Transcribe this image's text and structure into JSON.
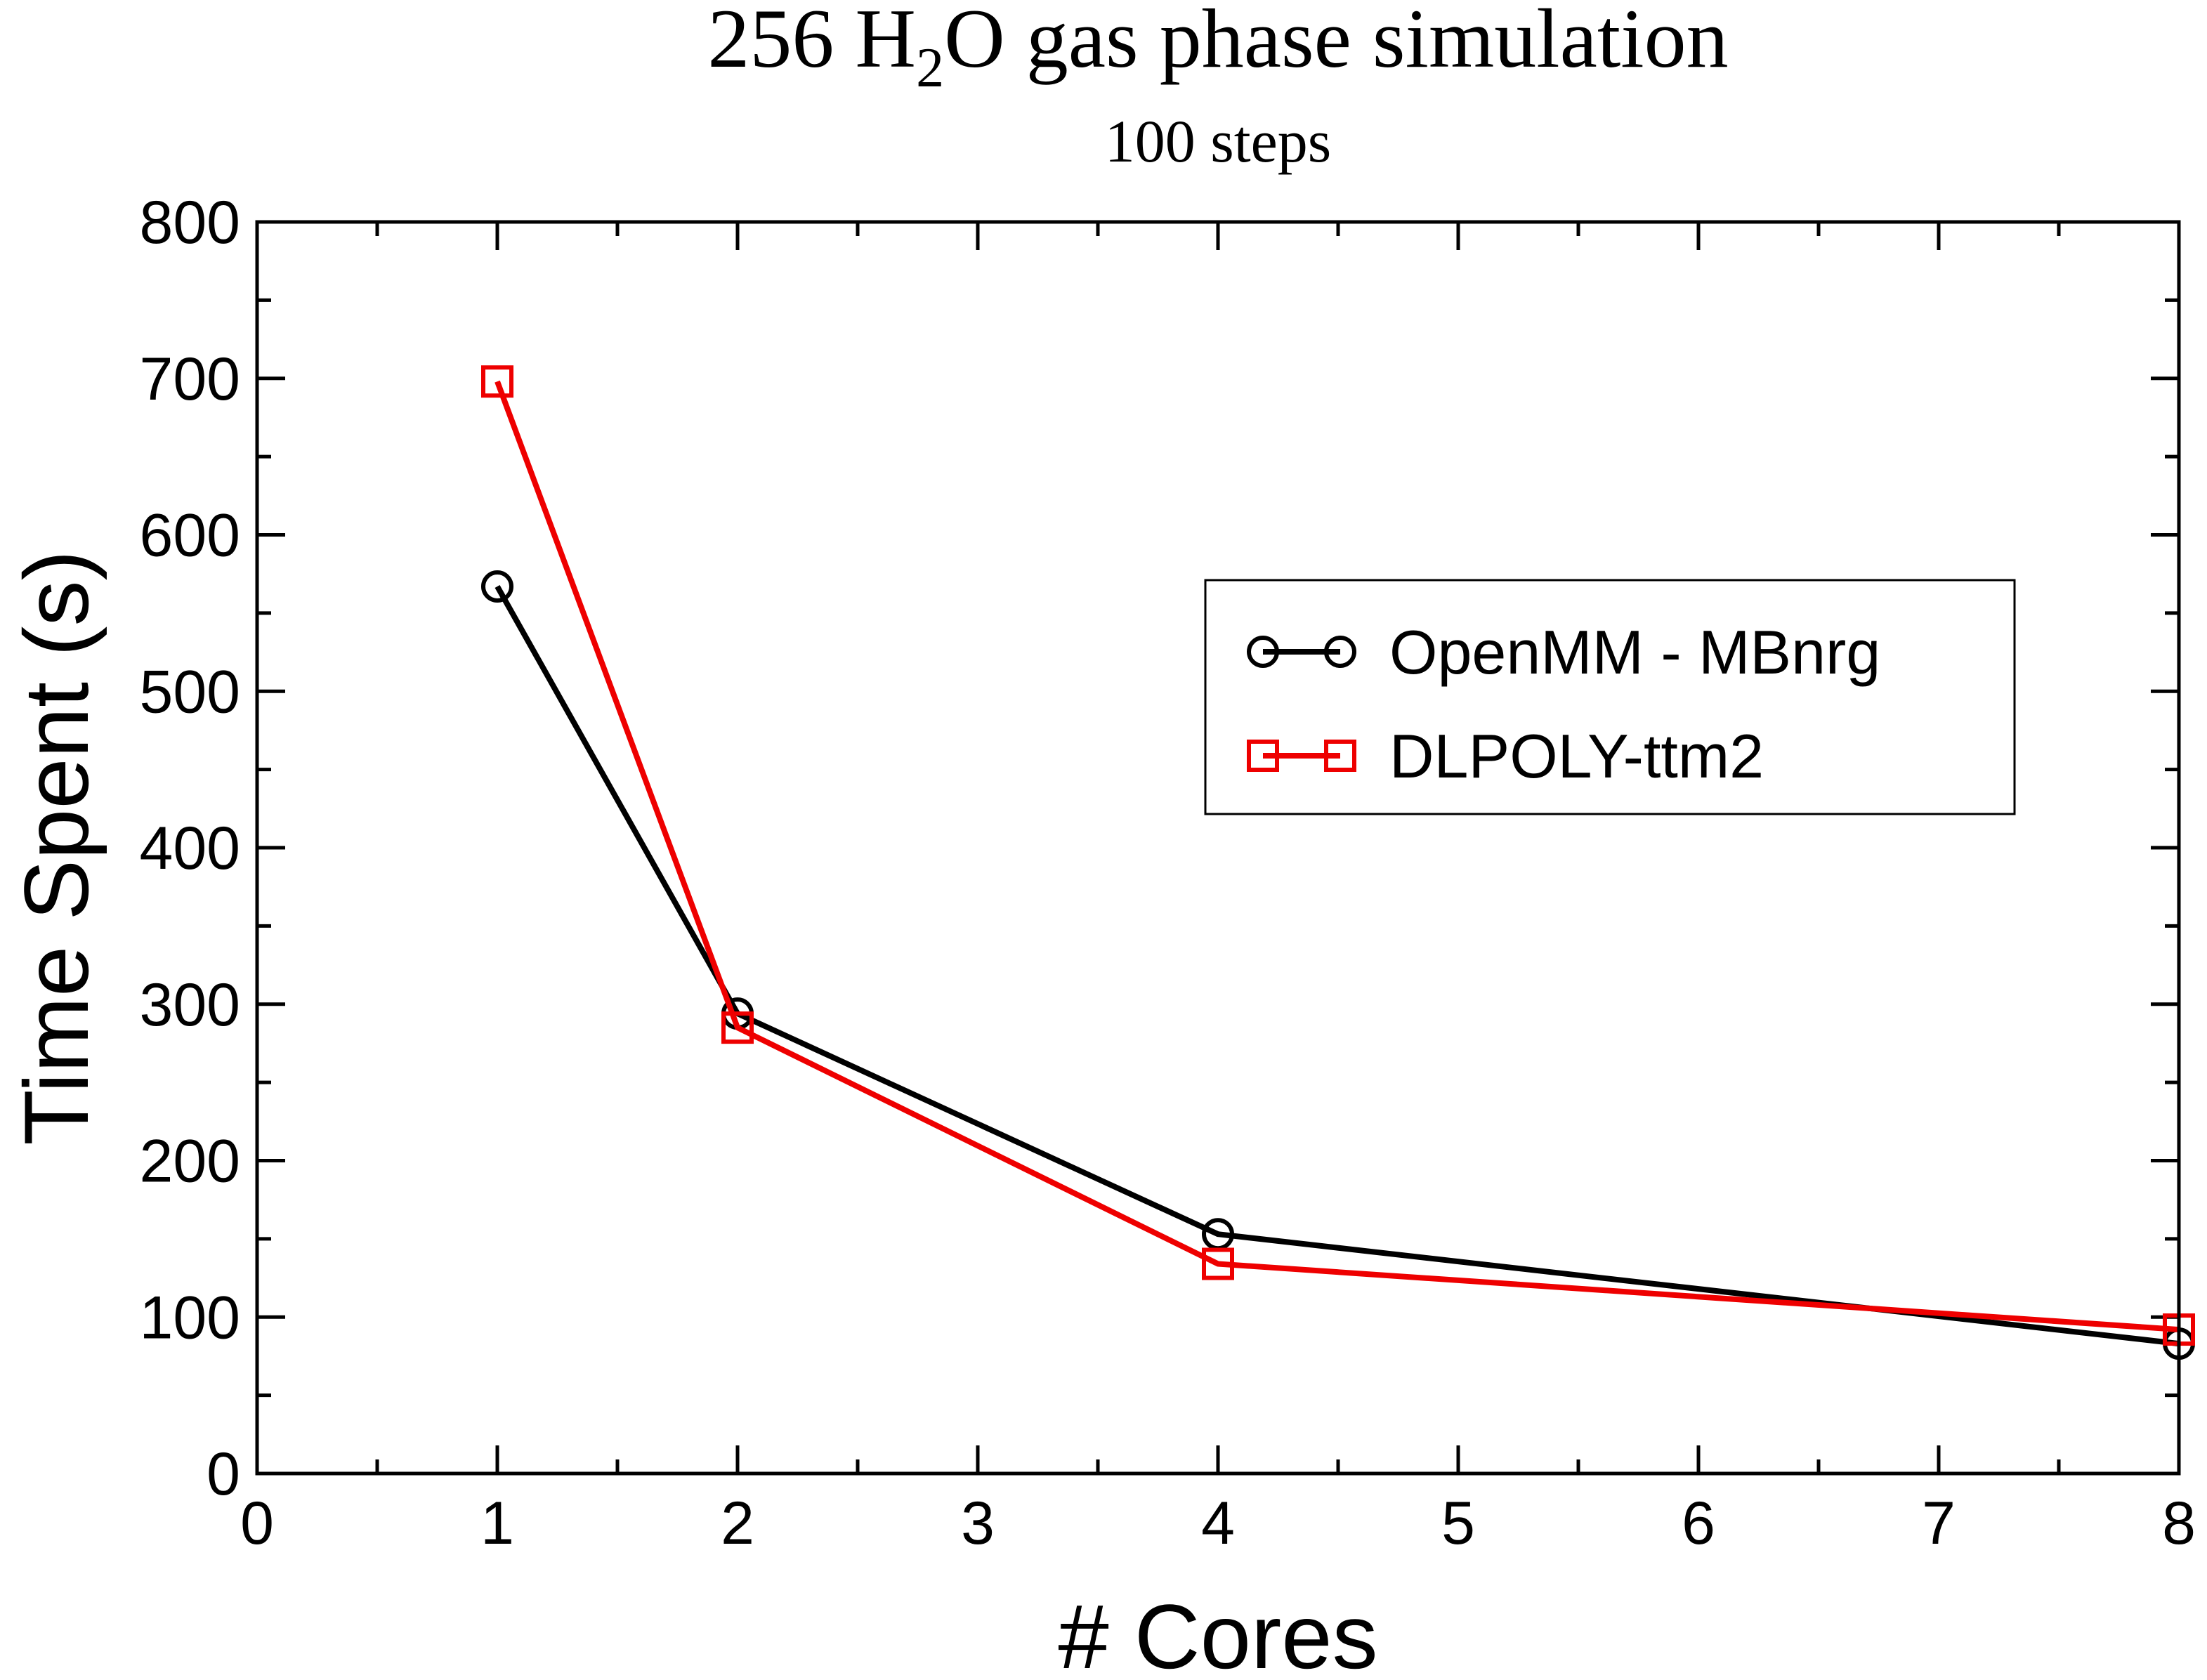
{
  "chart_data": {
    "type": "line",
    "title_parts": {
      "pre": "256 H",
      "sub": "2",
      "post": "O gas phase simulation"
    },
    "subtitle": "100 steps",
    "xlabel": "# Cores",
    "ylabel": "Time Spent (s)",
    "xlim": [
      0,
      8
    ],
    "ylim": [
      0,
      800
    ],
    "x_ticks": [
      0,
      1,
      2,
      3,
      4,
      5,
      6,
      7,
      8
    ],
    "x_tick_labels": [
      "0",
      "1",
      "2",
      "3",
      "4",
      "5",
      "6",
      "7",
      "8"
    ],
    "y_ticks": [
      0,
      100,
      200,
      300,
      400,
      500,
      600,
      700,
      800
    ],
    "y_tick_labels": [
      "0",
      "100",
      "200",
      "300",
      "400",
      "500",
      "600",
      "700",
      "800"
    ],
    "y_minor_step": 50,
    "grid": false,
    "legend_position": "right, upper-middle",
    "series": [
      {
        "name": "OpenMM - MBnrg",
        "color": "#000000",
        "marker": "circle",
        "x": [
          1,
          2,
          4,
          8
        ],
        "y": [
          567,
          294,
          153,
          83
        ]
      },
      {
        "name": "DLPOLY-ttm2",
        "color": "#ee0000",
        "marker": "square",
        "x": [
          1,
          2,
          4,
          8
        ],
        "y": [
          698,
          285,
          134,
          92
        ]
      }
    ]
  }
}
